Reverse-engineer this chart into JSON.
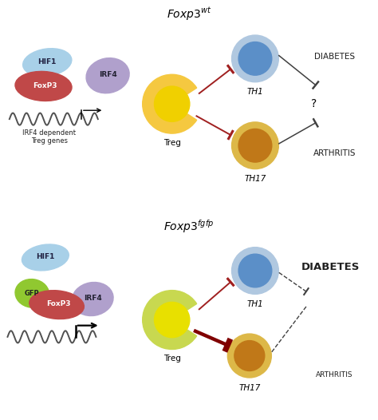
{
  "panel1_bg": "#e8e8e8",
  "panel2_bg": "#e8ecda",
  "panel1_title": "Foxp3",
  "panel1_super": "wt",
  "panel2_title": "Foxp3",
  "panel2_super": "fgfp",
  "hif1_color": "#a8d0e8",
  "foxp3_color": "#c04848",
  "irf4_color": "#b0a0cc",
  "gfp_color": "#90c830",
  "treg1_outer": "#f5c840",
  "treg1_inner": "#f0d000",
  "treg2_outer": "#c8d850",
  "treg2_inner": "#e8e000",
  "th1_outer": "#b0c8e0",
  "th1_inner": "#5b8fc8",
  "th17_outer": "#ddb848",
  "th17_inner": "#c07818",
  "inhibit_color": "#a02020",
  "inhibit_strong": "#800000",
  "arrow_color": "#404040",
  "text_color": "#202020",
  "wave_color": "#505050",
  "white": "#ffffff",
  "panel1_tri_left": "#d0d0d0",
  "panel2_tri_left": "#d0d4b8"
}
